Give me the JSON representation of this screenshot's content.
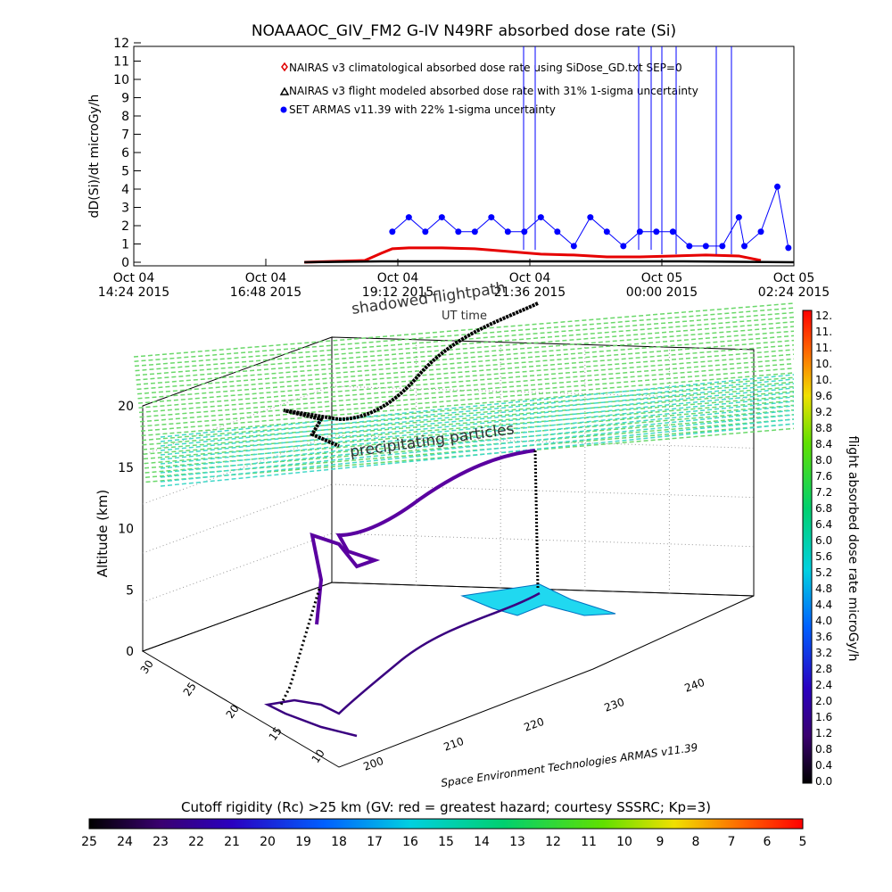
{
  "title": "NOAAAOC_GIV_FM2 G-IV    N49RF  absorbed dose rate (Si)",
  "top_chart": {
    "ylabel": "dD(Si)/dt microGy/h",
    "yticks": [
      "0",
      "1",
      "2",
      "3",
      "4",
      "5",
      "6",
      "7",
      "8",
      "9",
      "10",
      "11",
      "12"
    ],
    "xticks": [
      {
        "date": "Oct 04",
        "time": "14:24 2015"
      },
      {
        "date": "Oct 04",
        "time": "16:48 2015"
      },
      {
        "date": "Oct 04",
        "time": "19:12 2015"
      },
      {
        "date": "Oct 04",
        "time": "21:36 2015"
      },
      {
        "date": "Oct 05",
        "time": "00:00 2015"
      },
      {
        "date": "Oct 05",
        "time": "02:24 2015"
      }
    ],
    "legend": [
      "NAIRAS v3 climatological absorbed dose rate using SiDose_GD.txt SEP=0",
      "NAIRAS v3 flight modeled absorbed dose rate with 31% 1-sigma uncertainty",
      "SET ARMAS v11.39 with 22% 1-sigma uncertainty"
    ]
  },
  "chart_data": {
    "type": "line",
    "title": "NOAAAOC_GIV_FM2 G-IV    N49RF  absorbed dose rate (Si)",
    "ylabel": "dD(Si)/dt microGy/h",
    "ylim": [
      0,
      12
    ],
    "x_unit": "hours after Oct 04 14:24 2015 UT",
    "series": [
      {
        "name": "NAIRAS v3 climatological absorbed dose rate using SiDose_GD.txt SEP=0",
        "color": "#e60000",
        "x": [
          3.1,
          4.2,
          4.5,
          4.7,
          5.0,
          5.6,
          6.2,
          6.8,
          7.4,
          8.0,
          8.6,
          9.2,
          9.8,
          10.4,
          11.0,
          11.4
        ],
        "y": [
          0.0,
          0.1,
          0.5,
          0.75,
          0.8,
          0.8,
          0.75,
          0.6,
          0.45,
          0.4,
          0.3,
          0.3,
          0.35,
          0.4,
          0.35,
          0.1
        ]
      },
      {
        "name": "NAIRAS v3 flight modeled absorbed dose rate with 31% 1-sigma uncertainty",
        "color": "#000000",
        "x": [
          3.1,
          4.5,
          6.0,
          8.0,
          10.0,
          12.0
        ],
        "y": [
          0.0,
          0.05,
          0.05,
          0.05,
          0.05,
          0.0
        ]
      },
      {
        "name": "SET ARMAS v11.39 with 22% 1-sigma uncertainty",
        "color": "#0000ff",
        "x": [
          4.7,
          5.0,
          5.3,
          5.6,
          5.9,
          6.2,
          6.5,
          6.8,
          7.1,
          7.4,
          7.7,
          8.0,
          8.3,
          8.6,
          8.9,
          9.2,
          9.5,
          9.8,
          10.1,
          10.4,
          10.7,
          11.0,
          11.1,
          11.4,
          11.7,
          11.9
        ],
        "y": [
          1.7,
          2.5,
          1.7,
          2.5,
          1.7,
          1.7,
          2.5,
          1.7,
          1.7,
          2.5,
          1.7,
          0.9,
          2.5,
          1.7,
          0.9,
          1.7,
          1.7,
          1.7,
          0.9,
          0.9,
          0.9,
          2.5,
          0.9,
          1.7,
          4.2,
          0.8
        ]
      }
    ]
  },
  "three_d": {
    "zlabel": "Altitude (km)",
    "zticks": [
      "0",
      "5",
      "10",
      "15",
      "20"
    ],
    "xticks": [
      "200",
      "210",
      "220",
      "230",
      "240"
    ],
    "yticks": [
      "10",
      "15",
      "20",
      "25",
      "30"
    ],
    "annot_shadow": "shadowed flightpath",
    "annot_ut": "UT time",
    "annot_precip": "precipitating particles",
    "footer": "Space Environment Technologies ARMAS v11.39"
  },
  "right_colorbar": {
    "label": "flight absorbed dose rate microGy/h",
    "ticks": [
      "12.",
      "11.",
      "11.",
      "10.",
      "10.",
      "9.6",
      "9.2",
      "8.8",
      "8.4",
      "8.0",
      "7.6",
      "7.2",
      "6.8",
      "6.4",
      "6.0",
      "5.6",
      "5.2",
      "4.8",
      "4.4",
      "4.0",
      "3.6",
      "3.2",
      "2.8",
      "2.4",
      "2.0",
      "1.6",
      "1.2",
      "0.8",
      "0.4",
      "0.0"
    ]
  },
  "bottom_colorbar": {
    "label": "Cutoff rigidity (Rc) >25 km (GV: red = greatest hazard; courtesy SSSRC; Kp=3)",
    "ticks": [
      "25",
      "24",
      "23",
      "22",
      "21",
      "20",
      "19",
      "18",
      "17",
      "16",
      "15",
      "14",
      "13",
      "12",
      "11",
      "10",
      "9",
      "8",
      "7",
      "6",
      "5"
    ]
  }
}
